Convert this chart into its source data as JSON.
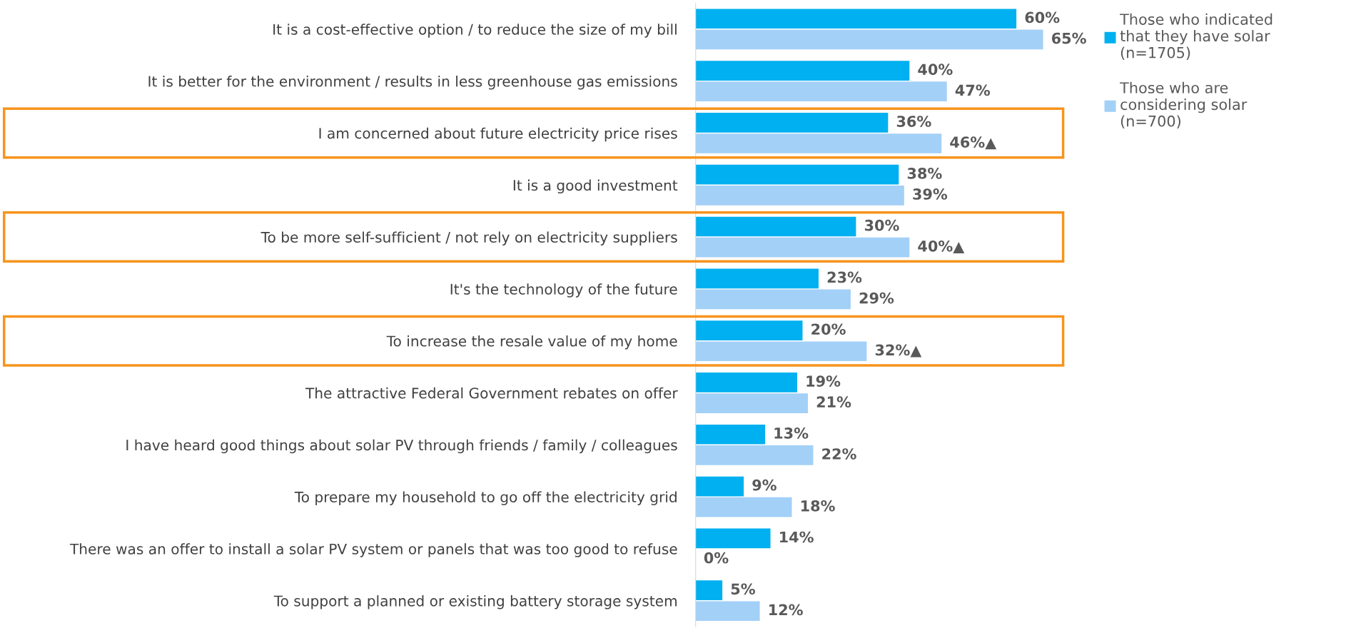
{
  "chart_data": {
    "type": "bar",
    "orientation": "horizontal",
    "categories": [
      "It is a cost-effective option / to reduce the size of my bill",
      "It is better for the environment / results in less greenhouse gas emissions",
      "I am concerned about future electricity price rises",
      "It is a good investment",
      "To be more self-sufficient / not rely on electricity suppliers",
      "It's the technology of the future",
      "To increase the resale value of my home",
      "The attractive Federal Government rebates on offer",
      "I have heard good things about solar PV through friends / family / colleagues",
      "To prepare my household to go off the electricity grid",
      "There was an offer to install a solar PV system or panels that was too good to refuse",
      "To support a planned or existing battery storage system"
    ],
    "series": [
      {
        "name": "Those who indicated\nthat they have solar\n(n=1705)",
        "color": "#00b0f0",
        "values": [
          60,
          40,
          36,
          38,
          30,
          23,
          20,
          19,
          13,
          9,
          14,
          5
        ],
        "value_labels": [
          "60%",
          "40%",
          "36%",
          "38%",
          "30%",
          "23%",
          "20%",
          "19%",
          "13%",
          "9%",
          "14%",
          "5%"
        ]
      },
      {
        "name": "Those who are\nconsidering solar\n(n=700)",
        "color": "#a3d0f7",
        "values": [
          65,
          47,
          46,
          39,
          40,
          29,
          32,
          21,
          22,
          18,
          0,
          12
        ],
        "value_labels": [
          "65%",
          "47%",
          "46%▲",
          "39%",
          "40%▲",
          "29%",
          "32%▲",
          "21%",
          "22%",
          "18%",
          "0%",
          "12%"
        ]
      }
    ],
    "legend": "top right",
    "grid": false
  }
}
